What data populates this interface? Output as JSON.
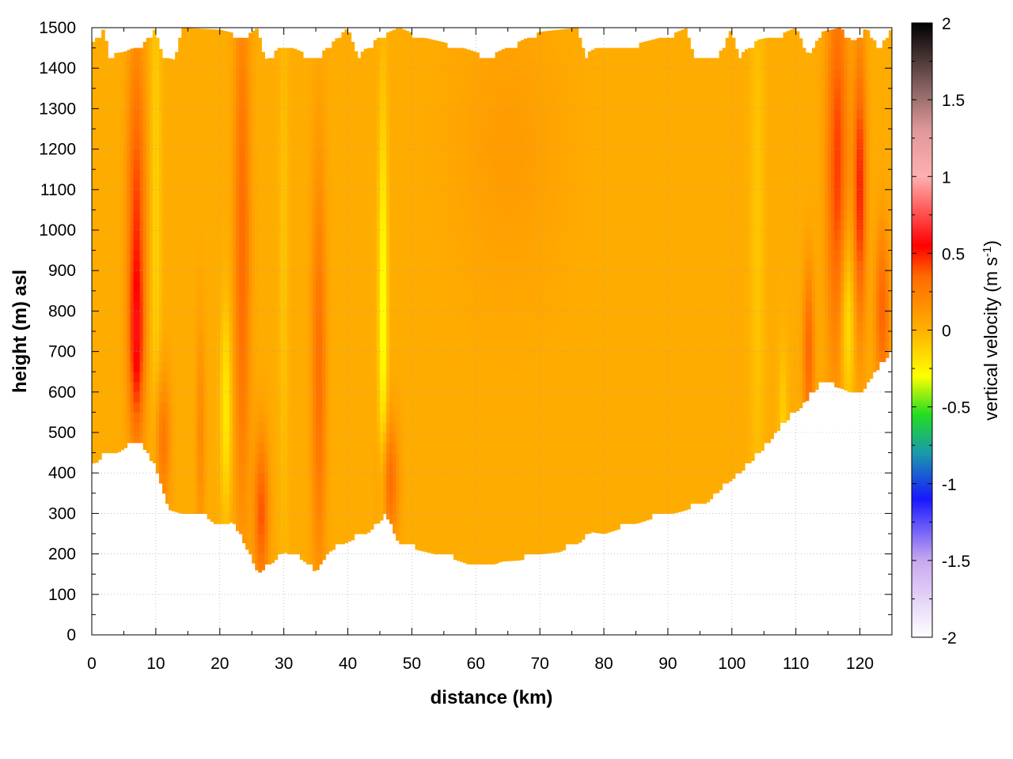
{
  "chart_data": {
    "type": "heatmap",
    "title": "",
    "xlabel": "distance (km)",
    "ylabel": "height (m) asl",
    "xlim": [
      0,
      125
    ],
    "ylim": [
      0,
      1500
    ],
    "x_ticks": [
      0,
      10,
      20,
      30,
      40,
      50,
      60,
      70,
      80,
      90,
      100,
      110,
      120
    ],
    "y_ticks": [
      0,
      100,
      200,
      300,
      400,
      500,
      600,
      700,
      800,
      900,
      1000,
      1100,
      1200,
      1300,
      1400,
      1500
    ],
    "grid": true,
    "colorbar": {
      "label_main": "vertical velocity (m s",
      "label_sup": "-1",
      "label_end": ")",
      "range": [
        -2,
        2
      ],
      "ticks": [
        2,
        1.5,
        1,
        0.5,
        0,
        -0.5,
        -1,
        -1.5,
        -2
      ],
      "tick_labels": [
        "2",
        "1.5",
        "1",
        "0.5",
        "0",
        "-0.5",
        "-1",
        "-1.5",
        "-2"
      ],
      "colors": [
        {
          "v": -2.0,
          "c": "#ffffff"
        },
        {
          "v": -1.5,
          "c": "#c8a8f0"
        },
        {
          "v": -1.1,
          "c": "#1818ff"
        },
        {
          "v": -0.8,
          "c": "#1a9aaa"
        },
        {
          "v": -0.55,
          "c": "#22dd22"
        },
        {
          "v": -0.3,
          "c": "#ffff00"
        },
        {
          "v": 0.0,
          "c": "#ffb000"
        },
        {
          "v": 0.35,
          "c": "#ff6a00"
        },
        {
          "v": 0.55,
          "c": "#ff0000"
        },
        {
          "v": 0.8,
          "c": "#ff6060"
        },
        {
          "v": 1.0,
          "c": "#ffb0b0"
        },
        {
          "v": 1.3,
          "c": "#e09898"
        },
        {
          "v": 1.55,
          "c": "#906868"
        },
        {
          "v": 2.0,
          "c": "#000000"
        }
      ]
    },
    "background_value": 0.02,
    "bottom_boundary": [
      {
        "x": 0,
        "y": 415
      },
      {
        "x": 2,
        "y": 445
      },
      {
        "x": 4,
        "y": 450
      },
      {
        "x": 6,
        "y": 470
      },
      {
        "x": 8,
        "y": 465
      },
      {
        "x": 10,
        "y": 410
      },
      {
        "x": 12,
        "y": 310
      },
      {
        "x": 15,
        "y": 295
      },
      {
        "x": 18,
        "y": 290
      },
      {
        "x": 20,
        "y": 265
      },
      {
        "x": 22,
        "y": 280
      },
      {
        "x": 24,
        "y": 220
      },
      {
        "x": 26,
        "y": 152
      },
      {
        "x": 28,
        "y": 175
      },
      {
        "x": 30,
        "y": 205
      },
      {
        "x": 33,
        "y": 185
      },
      {
        "x": 35,
        "y": 155
      },
      {
        "x": 37,
        "y": 205
      },
      {
        "x": 40,
        "y": 230
      },
      {
        "x": 43,
        "y": 250
      },
      {
        "x": 46,
        "y": 295
      },
      {
        "x": 48,
        "y": 225
      },
      {
        "x": 51,
        "y": 210
      },
      {
        "x": 55,
        "y": 195
      },
      {
        "x": 58,
        "y": 180
      },
      {
        "x": 61,
        "y": 162
      },
      {
        "x": 64,
        "y": 182
      },
      {
        "x": 67,
        "y": 185
      },
      {
        "x": 70,
        "y": 200
      },
      {
        "x": 73,
        "y": 205
      },
      {
        "x": 76,
        "y": 225
      },
      {
        "x": 78,
        "y": 255
      },
      {
        "x": 80,
        "y": 250
      },
      {
        "x": 84,
        "y": 270
      },
      {
        "x": 88,
        "y": 290
      },
      {
        "x": 92,
        "y": 305
      },
      {
        "x": 96,
        "y": 325
      },
      {
        "x": 99,
        "y": 370
      },
      {
        "x": 102,
        "y": 410
      },
      {
        "x": 105,
        "y": 460
      },
      {
        "x": 108,
        "y": 520
      },
      {
        "x": 111,
        "y": 565
      },
      {
        "x": 114,
        "y": 620
      },
      {
        "x": 117,
        "y": 610
      },
      {
        "x": 120,
        "y": 590
      },
      {
        "x": 122,
        "y": 640
      },
      {
        "x": 125,
        "y": 700
      }
    ],
    "top_boundary": [
      {
        "x": 0,
        "y": 1460
      },
      {
        "x": 2,
        "y": 1500
      },
      {
        "x": 2.5,
        "y": 1435
      },
      {
        "x": 5,
        "y": 1440
      },
      {
        "x": 8,
        "y": 1460
      },
      {
        "x": 10,
        "y": 1500
      },
      {
        "x": 11,
        "y": 1430
      },
      {
        "x": 13,
        "y": 1420
      },
      {
        "x": 14,
        "y": 1500
      },
      {
        "x": 20,
        "y": 1495
      },
      {
        "x": 24,
        "y": 1480
      },
      {
        "x": 26,
        "y": 1500
      },
      {
        "x": 27,
        "y": 1420
      },
      {
        "x": 30,
        "y": 1460
      },
      {
        "x": 35,
        "y": 1425
      },
      {
        "x": 40,
        "y": 1500
      },
      {
        "x": 41.5,
        "y": 1430
      },
      {
        "x": 45,
        "y": 1480
      },
      {
        "x": 48,
        "y": 1500
      },
      {
        "x": 52,
        "y": 1475
      },
      {
        "x": 56,
        "y": 1460
      },
      {
        "x": 59,
        "y": 1445
      },
      {
        "x": 62,
        "y": 1430
      },
      {
        "x": 66,
        "y": 1460
      },
      {
        "x": 70,
        "y": 1490
      },
      {
        "x": 76,
        "y": 1500
      },
      {
        "x": 77,
        "y": 1435
      },
      {
        "x": 80,
        "y": 1460
      },
      {
        "x": 85,
        "y": 1460
      },
      {
        "x": 90,
        "y": 1480
      },
      {
        "x": 93,
        "y": 1500
      },
      {
        "x": 94,
        "y": 1430
      },
      {
        "x": 98,
        "y": 1435
      },
      {
        "x": 100,
        "y": 1500
      },
      {
        "x": 101,
        "y": 1430
      },
      {
        "x": 104,
        "y": 1470
      },
      {
        "x": 107,
        "y": 1480
      },
      {
        "x": 110,
        "y": 1500
      },
      {
        "x": 112,
        "y": 1430
      },
      {
        "x": 114,
        "y": 1490
      },
      {
        "x": 117,
        "y": 1500
      },
      {
        "x": 119,
        "y": 1465
      },
      {
        "x": 121,
        "y": 1500
      },
      {
        "x": 123,
        "y": 1450
      },
      {
        "x": 125,
        "y": 1500
      }
    ],
    "features": [
      {
        "x": 7,
        "y": 1000,
        "sx": 1.0,
        "sy": 330,
        "v": 0.42
      },
      {
        "x": 7,
        "y": 700,
        "sx": 0.8,
        "sy": 150,
        "v": 0.3
      },
      {
        "x": 11,
        "y": 480,
        "sx": 0.9,
        "sy": 120,
        "v": 0.28
      },
      {
        "x": 10,
        "y": 1000,
        "sx": 0.6,
        "sy": 600,
        "v": -0.15
      },
      {
        "x": 21,
        "y": 560,
        "sx": 0.6,
        "sy": 180,
        "v": -0.25
      },
      {
        "x": 23.5,
        "y": 950,
        "sx": 0.9,
        "sy": 500,
        "v": 0.32
      },
      {
        "x": 26.5,
        "y": 300,
        "sx": 0.8,
        "sy": 140,
        "v": 0.38
      },
      {
        "x": 35.5,
        "y": 650,
        "sx": 0.8,
        "sy": 380,
        "v": 0.3
      },
      {
        "x": 45.5,
        "y": 800,
        "sx": 0.5,
        "sy": 350,
        "v": -0.35
      },
      {
        "x": 46.5,
        "y": 380,
        "sx": 1.0,
        "sy": 110,
        "v": 0.32
      },
      {
        "x": 17,
        "y": 500,
        "sx": 0.5,
        "sy": 200,
        "v": 0.18
      },
      {
        "x": 30,
        "y": 900,
        "sx": 0.5,
        "sy": 500,
        "v": -0.1
      },
      {
        "x": 108,
        "y": 500,
        "sx": 0.5,
        "sy": 150,
        "v": -0.15
      },
      {
        "x": 112,
        "y": 700,
        "sx": 0.6,
        "sy": 150,
        "v": 0.35
      },
      {
        "x": 116.5,
        "y": 1150,
        "sx": 1.2,
        "sy": 360,
        "v": 0.42
      },
      {
        "x": 118,
        "y": 780,
        "sx": 0.8,
        "sy": 160,
        "v": -0.28
      },
      {
        "x": 120,
        "y": 1100,
        "sx": 0.7,
        "sy": 250,
        "v": 0.48
      },
      {
        "x": 123.5,
        "y": 800,
        "sx": 0.8,
        "sy": 150,
        "v": 0.35
      },
      {
        "x": 104,
        "y": 1000,
        "sx": 0.8,
        "sy": 600,
        "v": -0.1
      },
      {
        "x": 65,
        "y": 1200,
        "sx": 6.0,
        "sy": 250,
        "v": 0.08
      }
    ]
  }
}
